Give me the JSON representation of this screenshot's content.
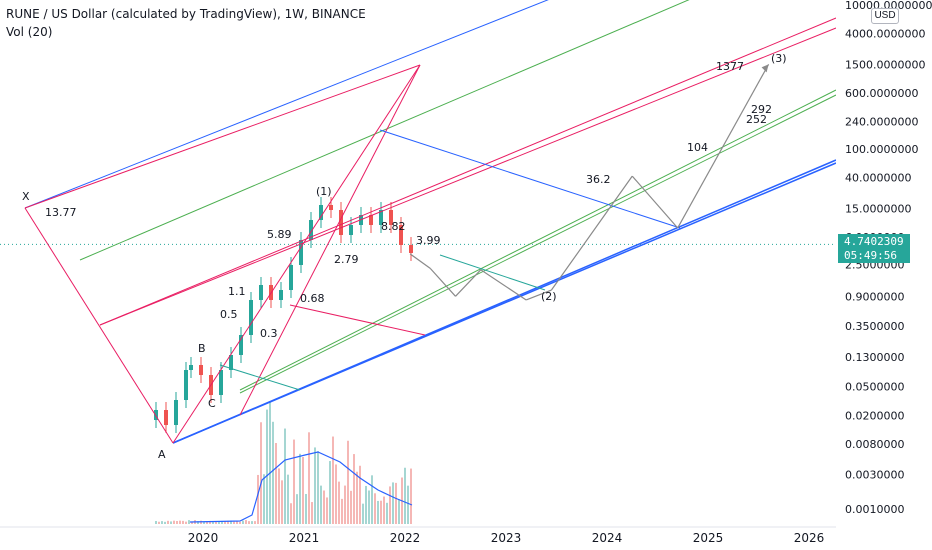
{
  "header": {
    "title": "RUNE / US Dollar (calculated by TradingView), 1W, BINANCE",
    "volume_label": "Vol (20)"
  },
  "price_tag": {
    "price": "4.7402309",
    "countdown": "05:49:56"
  },
  "currency": "USD",
  "colors": {
    "blue": "#2962ff",
    "red": "#e91e63",
    "green": "#4caf50",
    "gray": "#8a8a8a",
    "teal": "#26a69a",
    "candle_up": "#26a69a",
    "candle_down": "#ef5350"
  },
  "chart_data": {
    "type": "line",
    "x_axis": {
      "ticks": [
        "2020",
        "2021",
        "2022",
        "2023",
        "2024",
        "2025",
        "2026"
      ]
    },
    "y_axis": {
      "scale": "log",
      "ticks": [
        "10000.0000000",
        "4000.0000000",
        "1500.0000000",
        "600.0000000",
        "240.0000000",
        "100.0000000",
        "40.0000000",
        "15.0000000",
        "6.0000000",
        "2.5000000",
        "0.9000000",
        "0.3500000",
        "0.1300000",
        "0.0500000",
        "0.0200000",
        "0.0080000",
        "0.0030000",
        "0.0010000"
      ]
    },
    "wave_labels": [
      "X",
      "A",
      "B",
      "C",
      "(1)",
      "(2)",
      "(3)"
    ],
    "level_labels": [
      "13.77",
      "5.89",
      "2.79",
      "1.1",
      "0.5",
      "0.3",
      "0.68",
      "8.82",
      "3.99",
      "36.2",
      "104",
      "252",
      "292",
      "1377"
    ],
    "projection_path": [
      [
        2022.05,
        3.5
      ],
      [
        2022.25,
        2.2
      ],
      [
        2022.5,
        0.9
      ],
      [
        2022.75,
        2.1
      ],
      [
        2023.2,
        0.8
      ],
      [
        2023.45,
        1.1
      ],
      [
        2024.25,
        42
      ],
      [
        2024.7,
        8
      ],
      [
        2025.6,
        1500
      ]
    ]
  }
}
